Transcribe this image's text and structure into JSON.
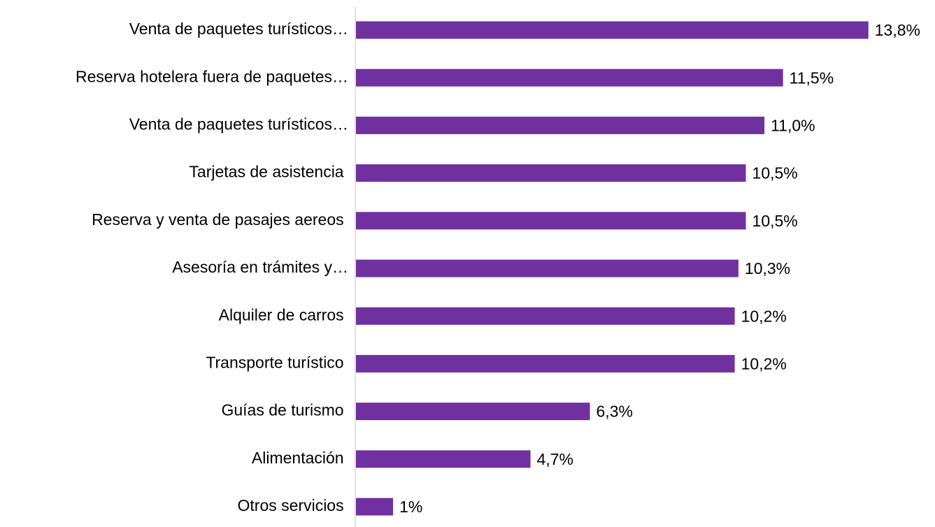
{
  "chart_data": {
    "type": "bar",
    "orientation": "horizontal",
    "color": "#7030a0",
    "categories": [
      "Venta de paquetes turísticos…",
      "Reserva hotelera fuera de paquetes…",
      "Venta de paquetes turísticos…",
      "Tarjetas de asistencia ",
      "Reserva y venta de pasajes aereos ",
      "Asesoría en trámites y…",
      "Alquiler de carros ",
      "Transporte turístico ",
      "Guías de turismo ",
      "Alimentación ",
      "Otros servicios "
    ],
    "values": [
      13.8,
      11.5,
      11.0,
      10.5,
      10.5,
      10.3,
      10.2,
      10.2,
      6.3,
      4.7,
      1
    ],
    "value_labels": [
      "13,8%",
      "11,5%",
      "11,0%",
      "10,5%",
      "10,5%",
      "10,3%",
      "10,2%",
      "10,2%",
      "6,3%",
      "4,7%",
      "1%"
    ]
  }
}
